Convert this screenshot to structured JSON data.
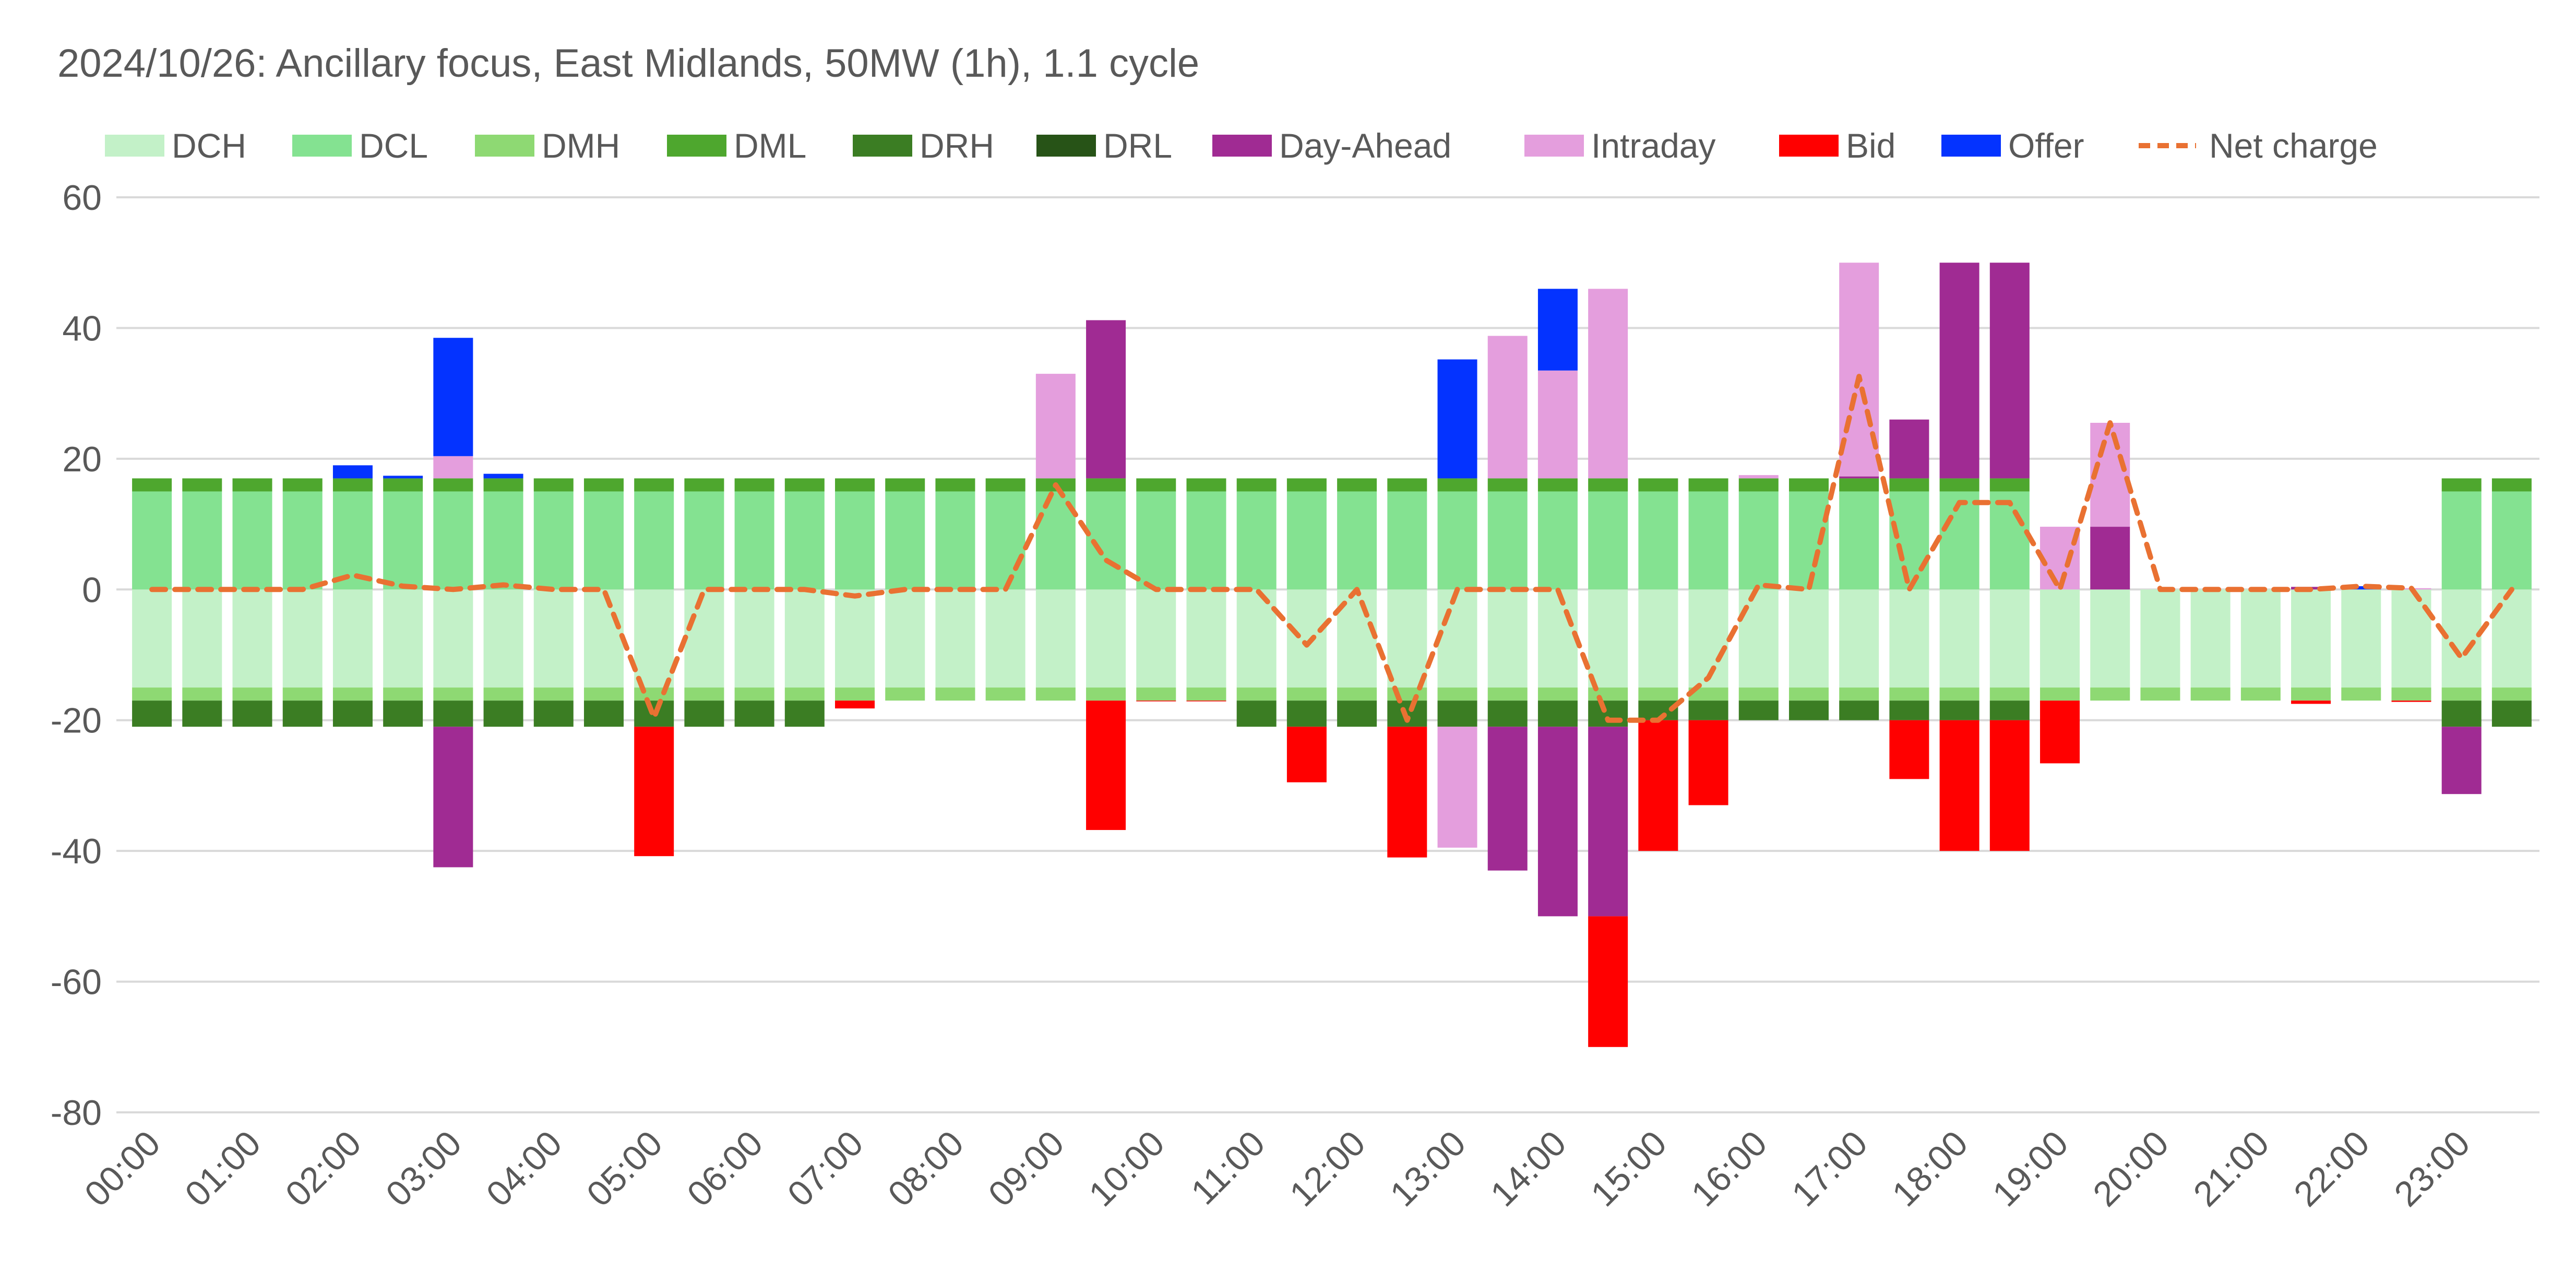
{
  "chart_data": {
    "type": "bar",
    "stacked": true,
    "title": "2024/10/26: Ancillary focus, East Midlands, 50MW (1h), 1.1 cycle",
    "xlabel": "",
    "ylabel": "",
    "ylim": [
      -80,
      60
    ],
    "yticks": [
      -80,
      -60,
      -40,
      -20,
      0,
      20,
      40,
      60
    ],
    "grid": true,
    "legend_position": "top",
    "x_tick_labels": [
      "00:00",
      "01:00",
      "02:00",
      "03:00",
      "04:00",
      "05:00",
      "06:00",
      "07:00",
      "08:00",
      "09:00",
      "10:00",
      "11:00",
      "12:00",
      "13:00",
      "14:00",
      "15:00",
      "16:00",
      "17:00",
      "18:00",
      "19:00",
      "20:00",
      "21:00",
      "22:00",
      "23:00"
    ],
    "categories": [
      "00:00",
      "00:30",
      "01:00",
      "01:30",
      "02:00",
      "02:30",
      "03:00",
      "03:30",
      "04:00",
      "04:30",
      "05:00",
      "05:30",
      "06:00",
      "06:30",
      "07:00",
      "07:30",
      "08:00",
      "08:30",
      "09:00",
      "09:30",
      "10:00",
      "10:30",
      "11:00",
      "11:30",
      "12:00",
      "12:30",
      "13:00",
      "13:30",
      "14:00",
      "14:30",
      "15:00",
      "15:30",
      "16:00",
      "16:30",
      "17:00",
      "17:30",
      "18:00",
      "18:30",
      "19:00",
      "19:30",
      "20:00",
      "20:30",
      "21:00",
      "21:30",
      "22:00",
      "22:30",
      "23:00",
      "23:30"
    ],
    "series": [
      {
        "name": "DCH",
        "type": "bar",
        "color": "#c3f1c8",
        "values": [
          -15,
          -15,
          -15,
          -15,
          -15,
          -15,
          -15,
          -15,
          -15,
          -15,
          -15,
          -15,
          -15,
          -15,
          -15,
          -15,
          -15,
          -15,
          -15,
          -15,
          -15,
          -15,
          -15,
          -15,
          -15,
          -15,
          -15,
          -15,
          -15,
          -15,
          -15,
          -15,
          -15,
          -15,
          -15,
          -15,
          -15,
          -15,
          -15,
          -15,
          -15,
          -15,
          -15,
          -15,
          -15,
          -15,
          -15,
          -15
        ]
      },
      {
        "name": "DCL",
        "type": "bar",
        "color": "#84e291",
        "values": [
          15,
          15,
          15,
          15,
          15,
          15,
          15,
          15,
          15,
          15,
          15,
          15,
          15,
          15,
          15,
          15,
          15,
          15,
          15,
          15,
          15,
          15,
          15,
          15,
          15,
          15,
          15,
          15,
          15,
          15,
          15,
          15,
          15,
          15,
          15,
          15,
          15,
          15,
          0,
          0,
          0,
          0,
          0,
          0,
          0,
          0,
          15,
          15
        ]
      },
      {
        "name": "DMH",
        "type": "bar",
        "color": "#8ed973",
        "values": [
          -2,
          -2,
          -2,
          -2,
          -2,
          -2,
          -2,
          -2,
          -2,
          -2,
          -2,
          -2,
          -2,
          -2,
          -2,
          -2,
          -2,
          -2,
          -2,
          -2,
          -2,
          -2,
          -2,
          -2,
          -2,
          -2,
          -2,
          -2,
          -2,
          -2,
          -2,
          -2,
          -2,
          -2,
          -2,
          -2,
          -2,
          -2,
          -2,
          -2,
          -2,
          -2,
          -2,
          -2,
          -2,
          -2,
          -2,
          -2
        ]
      },
      {
        "name": "DML",
        "type": "bar",
        "color": "#4ea72e",
        "values": [
          2,
          2,
          2,
          2,
          2,
          2,
          2,
          2,
          2,
          2,
          2,
          2,
          2,
          2,
          2,
          2,
          2,
          2,
          2,
          2,
          2,
          2,
          2,
          2,
          2,
          2,
          2,
          2,
          2,
          2,
          2,
          2,
          2,
          2,
          2,
          2,
          2,
          2,
          0,
          0,
          0,
          0,
          0,
          0,
          0,
          0,
          2,
          2
        ]
      },
      {
        "name": "DRH",
        "type": "bar",
        "color": "#3b7d23",
        "values": [
          -4,
          -4,
          -4,
          -4,
          -4,
          -4,
          -4,
          -4,
          -4,
          -4,
          -4,
          -4,
          -4,
          -4,
          0,
          0,
          0,
          0,
          0,
          0,
          0,
          0,
          -4,
          -4,
          -4,
          -4,
          -4,
          -4,
          -4,
          -4,
          -3,
          -3,
          -3,
          -3,
          -3,
          -3,
          -3,
          -3,
          0,
          0,
          0,
          0,
          0,
          0,
          0,
          0,
          -4,
          -4
        ]
      },
      {
        "name": "DRL",
        "type": "bar",
        "color": "#275317",
        "values": [
          0,
          0,
          0,
          0,
          0,
          0,
          0,
          0,
          0,
          0,
          0,
          0,
          0,
          0,
          0,
          0,
          0,
          0,
          0,
          0,
          0,
          0,
          0,
          0,
          0,
          0,
          0,
          0,
          0,
          0,
          0,
          0,
          0,
          0,
          0,
          0,
          0,
          0,
          0,
          0,
          0,
          0,
          0,
          0,
          0,
          0,
          0,
          0
        ]
      },
      {
        "name": "Day-Ahead",
        "type": "bar",
        "color": "#a02b93",
        "values": [
          0,
          0,
          0,
          0,
          0,
          0,
          -21.5,
          0,
          0,
          0,
          0,
          0,
          0,
          0,
          0,
          0,
          0,
          0,
          0,
          24.2,
          0,
          0,
          0,
          0,
          0,
          0,
          0,
          -22,
          -29,
          -29,
          0,
          0,
          0,
          0,
          0.3,
          9,
          33,
          33,
          0,
          9.6,
          0,
          0,
          0,
          0.4,
          0,
          0,
          -10.3,
          0
        ]
      },
      {
        "name": "Intraday",
        "type": "bar",
        "color": "#e49edd",
        "values": [
          0,
          0,
          0,
          0,
          0,
          0,
          3.4,
          0,
          0,
          0,
          0,
          0,
          0,
          0,
          0,
          0,
          0,
          0,
          16,
          0,
          0,
          0,
          0,
          0,
          0,
          0,
          -18.5,
          21.8,
          16.5,
          29,
          0,
          0,
          0.5,
          0,
          32.7,
          0,
          0,
          0,
          9.6,
          15.9,
          0,
          0,
          0,
          0,
          0,
          0.2,
          0,
          0
        ]
      },
      {
        "name": "Bid",
        "type": "bar",
        "color": "#ff0000",
        "values": [
          0,
          0,
          0,
          0,
          0,
          0,
          0,
          0,
          0,
          0,
          -19.8,
          0,
          0,
          0,
          -1.2,
          0,
          0,
          0,
          0,
          -19.8,
          -0.1,
          -0.1,
          0,
          -8.5,
          0,
          -20,
          0,
          0,
          0,
          -20,
          -20,
          -13,
          0,
          0,
          0,
          -9,
          -20,
          -20,
          -9.6,
          0,
          0,
          0,
          0,
          -0.5,
          0,
          -0.2,
          0,
          0
        ]
      },
      {
        "name": "Offer",
        "type": "bar",
        "color": "#0433ff",
        "values": [
          0,
          0,
          0,
          0,
          2,
          0.4,
          18.1,
          0.7,
          0,
          0,
          0,
          0,
          0,
          0,
          0,
          0,
          0,
          0,
          0,
          0,
          0,
          0,
          0,
          0,
          0,
          0,
          18.2,
          0,
          12.5,
          0,
          0,
          0,
          0,
          0,
          0,
          0,
          0,
          0,
          0,
          0,
          0,
          0,
          0,
          0,
          0.5,
          0,
          0,
          0
        ]
      },
      {
        "name": "Net charge",
        "type": "line",
        "color": "#e97132",
        "dashed": true,
        "values": [
          0,
          0,
          0,
          0,
          2.2,
          0.5,
          0,
          0.7,
          0,
          0,
          -19.6,
          0,
          0,
          0,
          -1,
          0,
          0,
          0,
          16,
          4.5,
          0,
          0,
          0,
          -8.5,
          0,
          -20,
          0,
          0,
          0,
          -20,
          -20,
          -13.5,
          0.7,
          0,
          32.6,
          0,
          13.3,
          13.3,
          0,
          25.5,
          0,
          0,
          0,
          0,
          0.5,
          0.2,
          -10.5,
          0
        ]
      }
    ]
  },
  "colors": {
    "text": "#595959",
    "grid": "#d9d9d9"
  }
}
